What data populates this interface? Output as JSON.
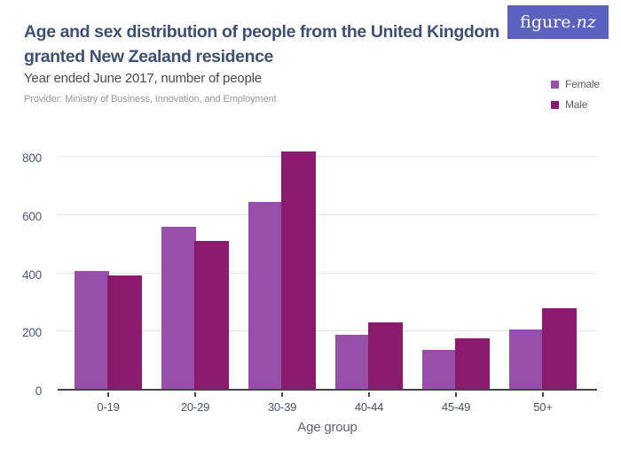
{
  "header": {
    "title": "Age and sex distribution of people from the United Kingdom granted New Zealand residence",
    "subtitle": "Year ended June 2017, number of people",
    "provider": "Provider: Ministry of Business, Innovation, and Employment",
    "logo_text_main": "figure.",
    "logo_text_suffix": "nz"
  },
  "legend": {
    "position": "top-right",
    "items": [
      {
        "label": "Female",
        "color": "#984FA9"
      },
      {
        "label": "Male",
        "color": "#8A1A6E"
      }
    ]
  },
  "chart_data": {
    "type": "bar",
    "title": "Age and sex distribution of people from the United Kingdom granted New Zealand residence",
    "subtitle": "Year ended June 2017, number of people",
    "categories": [
      "0-19",
      "20-29",
      "30-39",
      "40-44",
      "45-49",
      "50+"
    ],
    "series": [
      {
        "name": "Female",
        "color": "#984FA9",
        "values": [
          405,
          558,
          642,
          186,
          135,
          204
        ]
      },
      {
        "name": "Male",
        "color": "#8A1A6E",
        "values": [
          388,
          508,
          815,
          229,
          172,
          278
        ]
      }
    ],
    "xlabel": "Age group",
    "ylabel": "",
    "ylim": [
      0,
      800
    ],
    "yticks": [
      0,
      200,
      400,
      600,
      800
    ],
    "grid": true,
    "legend_position": "top-right"
  },
  "colors": {
    "female_bar": "#984FA9",
    "male_bar": "#8A1A6E",
    "logo_background": "#5A62BE",
    "title_text": "#3F5073",
    "axis_tick_text": "#4B5878",
    "gridline": "#E7E7EA",
    "axis_line": "#46464E",
    "background": "#FFFFFF"
  }
}
